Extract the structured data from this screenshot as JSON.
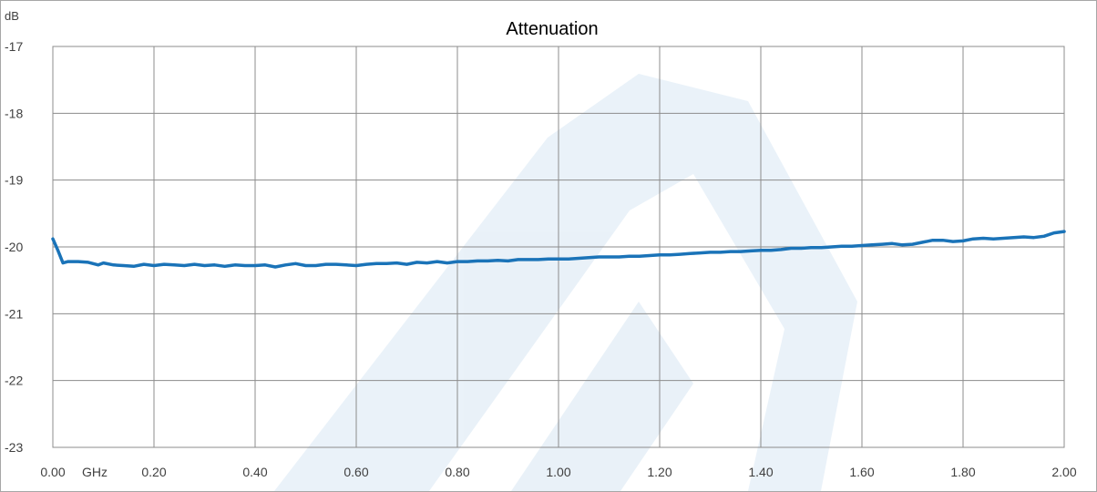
{
  "chart_data": {
    "type": "line",
    "title": "Attenuation",
    "ylabel": "dB",
    "xlabel": "GHz",
    "xlim": [
      0,
      2
    ],
    "ylim": [
      -23,
      -17
    ],
    "x_ticks": [
      0.0,
      0.2,
      0.4,
      0.6,
      0.8,
      1.0,
      1.2,
      1.4,
      1.6,
      1.8,
      2.0
    ],
    "x_tick_labels": [
      "0.00",
      "0.20",
      "0.40",
      "0.60",
      "0.80",
      "1.00",
      "1.20",
      "1.40",
      "1.60",
      "1.80",
      "2.00"
    ],
    "y_ticks": [
      -17,
      -18,
      -19,
      -20,
      -21,
      -22,
      -23
    ],
    "y_tick_labels": [
      "-17",
      "-18",
      "-19",
      "-20",
      "-21",
      "-22",
      "-23"
    ],
    "grid": true,
    "series": [
      {
        "color": "#1a73b8",
        "x": [
          0.0,
          0.01,
          0.02,
          0.03,
          0.05,
          0.07,
          0.09,
          0.1,
          0.12,
          0.14,
          0.16,
          0.18,
          0.2,
          0.22,
          0.24,
          0.26,
          0.28,
          0.3,
          0.32,
          0.34,
          0.36,
          0.38,
          0.4,
          0.42,
          0.44,
          0.46,
          0.48,
          0.5,
          0.52,
          0.54,
          0.56,
          0.58,
          0.6,
          0.62,
          0.64,
          0.66,
          0.68,
          0.7,
          0.72,
          0.74,
          0.76,
          0.78,
          0.8,
          0.82,
          0.84,
          0.86,
          0.88,
          0.9,
          0.92,
          0.94,
          0.96,
          0.98,
          1.0,
          1.02,
          1.04,
          1.06,
          1.08,
          1.1,
          1.12,
          1.14,
          1.16,
          1.18,
          1.2,
          1.22,
          1.24,
          1.26,
          1.28,
          1.3,
          1.32,
          1.34,
          1.36,
          1.38,
          1.4,
          1.42,
          1.44,
          1.46,
          1.48,
          1.5,
          1.52,
          1.54,
          1.56,
          1.58,
          1.6,
          1.62,
          1.64,
          1.66,
          1.68,
          1.7,
          1.72,
          1.74,
          1.76,
          1.78,
          1.8,
          1.82,
          1.84,
          1.86,
          1.88,
          1.9,
          1.92,
          1.94,
          1.96,
          1.98,
          2.0
        ],
        "values": [
          -19.88,
          -20.05,
          -20.24,
          -20.22,
          -20.22,
          -20.23,
          -20.27,
          -20.24,
          -20.27,
          -20.28,
          -20.29,
          -20.26,
          -20.28,
          -20.26,
          -20.27,
          -20.28,
          -20.26,
          -20.28,
          -20.27,
          -20.29,
          -20.27,
          -20.28,
          -20.28,
          -20.27,
          -20.3,
          -20.27,
          -20.25,
          -20.28,
          -20.28,
          -20.26,
          -20.26,
          -20.27,
          -20.28,
          -20.26,
          -20.25,
          -20.25,
          -20.24,
          -20.26,
          -20.23,
          -20.24,
          -20.22,
          -20.24,
          -20.22,
          -20.22,
          -20.21,
          -20.21,
          -20.2,
          -20.21,
          -20.19,
          -20.19,
          -20.19,
          -20.18,
          -20.18,
          -20.18,
          -20.17,
          -20.16,
          -20.15,
          -20.15,
          -20.15,
          -20.14,
          -20.14,
          -20.13,
          -20.12,
          -20.12,
          -20.11,
          -20.1,
          -20.09,
          -20.08,
          -20.08,
          -20.07,
          -20.07,
          -20.06,
          -20.05,
          -20.05,
          -20.04,
          -20.02,
          -20.02,
          -20.01,
          -20.01,
          -20.0,
          -19.99,
          -19.99,
          -19.98,
          -19.97,
          -19.96,
          -19.95,
          -19.97,
          -19.96,
          -19.93,
          -19.9,
          -19.9,
          -19.92,
          -19.91,
          -19.88,
          -19.87,
          -19.88,
          -19.87,
          -19.86,
          -19.85,
          -19.86,
          -19.84,
          -19.79,
          -19.77
        ]
      }
    ]
  }
}
